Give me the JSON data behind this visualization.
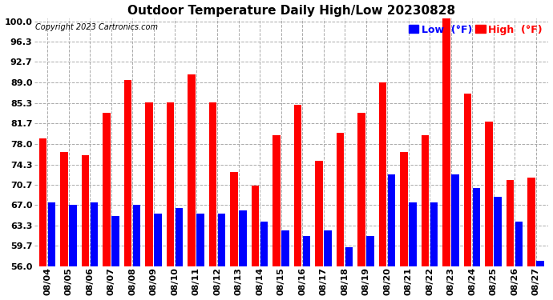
{
  "title": "Outdoor Temperature Daily High/Low 20230828",
  "copyright": "Copyright 2023 Cartronics.com",
  "legend_low": "Low  (°F)",
  "legend_high": "High  (°F)",
  "dates": [
    "08/04",
    "08/05",
    "08/06",
    "08/07",
    "08/08",
    "08/09",
    "08/10",
    "08/11",
    "08/12",
    "08/13",
    "08/14",
    "08/15",
    "08/16",
    "08/17",
    "08/18",
    "08/19",
    "08/20",
    "08/21",
    "08/22",
    "08/23",
    "08/24",
    "08/25",
    "08/26",
    "08/27"
  ],
  "highs": [
    79.0,
    76.5,
    76.0,
    83.5,
    89.5,
    85.5,
    85.5,
    90.5,
    85.5,
    73.0,
    70.5,
    79.5,
    85.0,
    75.0,
    80.0,
    83.5,
    89.0,
    76.5,
    79.5,
    100.5,
    87.0,
    82.0,
    71.5,
    72.0
  ],
  "lows": [
    67.5,
    67.0,
    67.5,
    65.0,
    67.0,
    65.5,
    66.5,
    65.5,
    65.5,
    66.0,
    64.0,
    62.5,
    61.5,
    62.5,
    59.5,
    61.5,
    72.5,
    67.5,
    67.5,
    72.5,
    70.0,
    68.5,
    64.0,
    57.0
  ],
  "high_color": "#ff0000",
  "low_color": "#0000ff",
  "background_color": "#ffffff",
  "grid_color": "#aaaaaa",
  "ylim_min": 56.0,
  "ylim_max": 100.0,
  "yticks": [
    56.0,
    59.7,
    63.3,
    67.0,
    70.7,
    74.3,
    78.0,
    81.7,
    85.3,
    89.0,
    92.7,
    96.3,
    100.0
  ],
  "title_fontsize": 11,
  "copyright_fontsize": 7,
  "legend_fontsize": 9,
  "tick_fontsize": 8,
  "bar_width": 0.36,
  "bar_gap": 0.05
}
